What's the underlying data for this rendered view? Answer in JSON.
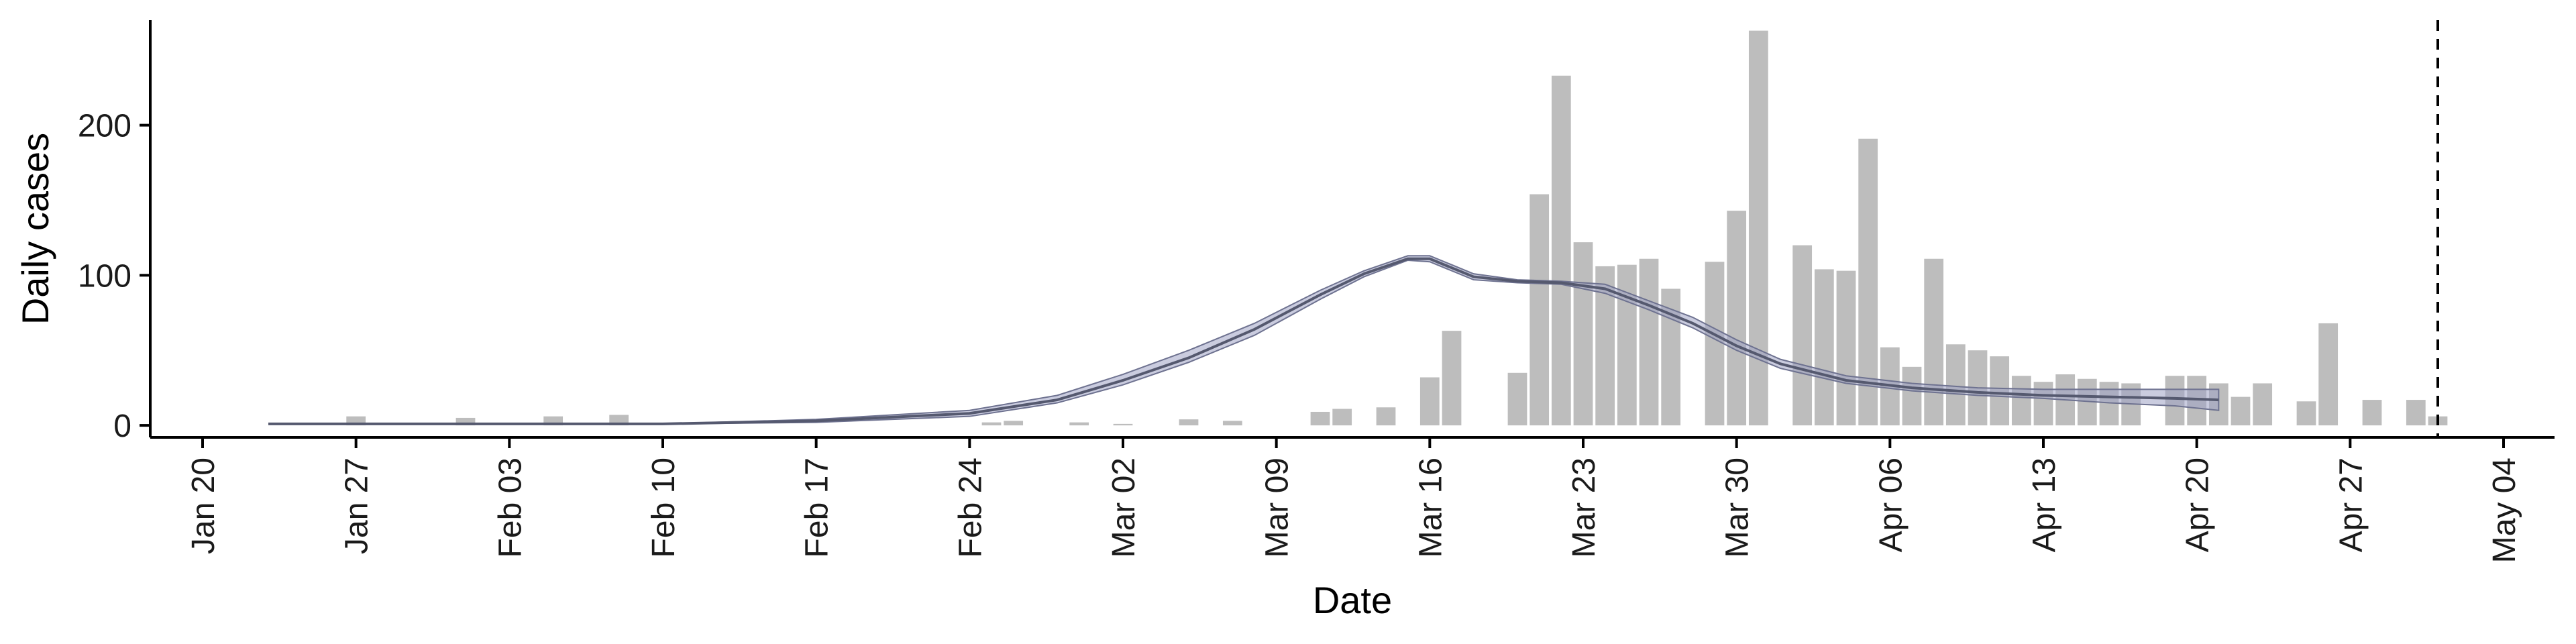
{
  "chart_data": {
    "type": "bar",
    "xlabel": "Date",
    "ylabel": "Daily cases",
    "x_axis": {
      "type": "date",
      "range": [
        "2020-01-20",
        "2020-05-04"
      ],
      "ticks": [
        "2020-01-20",
        "2020-01-27",
        "2020-02-03",
        "2020-02-10",
        "2020-02-17",
        "2020-02-24",
        "2020-03-02",
        "2020-03-09",
        "2020-03-16",
        "2020-03-23",
        "2020-03-30",
        "2020-04-06",
        "2020-04-13",
        "2020-04-20",
        "2020-04-27",
        "2020-05-04"
      ],
      "tick_labels": [
        "Jan 20",
        "Jan 27",
        "Feb 03",
        "Feb 10",
        "Feb 17",
        "Feb 24",
        "Mar 02",
        "Mar 09",
        "Mar 16",
        "Mar 23",
        "Mar 30",
        "Apr 06",
        "Apr 13",
        "Apr 20",
        "Apr 27",
        "May 04"
      ]
    },
    "y_axis": {
      "range": [
        -8,
        270
      ],
      "ticks": [
        0,
        100,
        200
      ],
      "tick_labels": [
        "0",
        "100",
        "200"
      ]
    },
    "grid": false,
    "legend": "none",
    "series": [
      {
        "type": "bar",
        "color": "#bdbdbd",
        "points": [
          [
            "2020-01-27",
            6
          ],
          [
            "2020-02-01",
            5
          ],
          [
            "2020-02-05",
            6
          ],
          [
            "2020-02-08",
            7
          ],
          [
            "2020-02-25",
            2
          ],
          [
            "2020-02-26",
            3
          ],
          [
            "2020-02-29",
            2
          ],
          [
            "2020-03-02",
            1
          ],
          [
            "2020-03-05",
            4
          ],
          [
            "2020-03-07",
            3
          ],
          [
            "2020-03-11",
            9
          ],
          [
            "2020-03-12",
            11
          ],
          [
            "2020-03-14",
            12
          ],
          [
            "2020-03-16",
            32
          ],
          [
            "2020-03-17",
            63
          ],
          [
            "2020-03-20",
            35
          ],
          [
            "2020-03-21",
            154
          ],
          [
            "2020-03-22",
            233
          ],
          [
            "2020-03-23",
            122
          ],
          [
            "2020-03-24",
            106
          ],
          [
            "2020-03-25",
            107
          ],
          [
            "2020-03-26",
            111
          ],
          [
            "2020-03-27",
            91
          ],
          [
            "2020-03-29",
            109
          ],
          [
            "2020-03-30",
            143
          ],
          [
            "2020-03-31",
            263
          ],
          [
            "2020-04-02",
            120
          ],
          [
            "2020-04-03",
            104
          ],
          [
            "2020-04-04",
            103
          ],
          [
            "2020-04-05",
            191
          ],
          [
            "2020-04-06",
            52
          ],
          [
            "2020-04-07",
            39
          ],
          [
            "2020-04-08",
            111
          ],
          [
            "2020-04-09",
            54
          ],
          [
            "2020-04-10",
            50
          ],
          [
            "2020-04-11",
            46
          ],
          [
            "2020-04-12",
            33
          ],
          [
            "2020-04-13",
            29
          ],
          [
            "2020-04-14",
            34
          ],
          [
            "2020-04-15",
            31
          ],
          [
            "2020-04-16",
            29
          ],
          [
            "2020-04-17",
            28
          ],
          [
            "2020-04-19",
            33
          ],
          [
            "2020-04-20",
            33
          ],
          [
            "2020-04-21",
            28
          ],
          [
            "2020-04-22",
            19
          ],
          [
            "2020-04-23",
            28
          ],
          [
            "2020-04-25",
            16
          ],
          [
            "2020-04-26",
            68
          ],
          [
            "2020-04-28",
            17
          ],
          [
            "2020-04-30",
            17
          ],
          [
            "2020-05-01",
            6
          ]
        ]
      },
      {
        "type": "line",
        "color": "#55596f",
        "ribbon_color": "#9ea3c4",
        "points": [
          [
            "2020-01-23",
            1,
            1,
            1
          ],
          [
            "2020-01-30",
            1,
            1,
            1
          ],
          [
            "2020-02-06",
            1,
            1,
            1
          ],
          [
            "2020-02-10",
            1,
            1,
            1
          ],
          [
            "2020-02-17",
            3,
            2,
            4
          ],
          [
            "2020-02-24",
            8,
            6,
            10
          ],
          [
            "2020-02-28",
            17,
            15,
            20
          ],
          [
            "2020-03-02",
            30,
            27,
            34
          ],
          [
            "2020-03-05",
            45,
            42,
            50
          ],
          [
            "2020-03-08",
            64,
            60,
            68
          ],
          [
            "2020-03-11",
            87,
            84,
            90
          ],
          [
            "2020-03-13",
            101,
            99,
            103
          ],
          [
            "2020-03-15",
            111,
            110,
            113
          ],
          [
            "2020-03-16",
            111,
            109,
            113
          ],
          [
            "2020-03-18",
            99,
            97,
            101
          ],
          [
            "2020-03-20",
            96,
            95,
            97
          ],
          [
            "2020-03-22",
            95,
            94,
            96
          ],
          [
            "2020-03-24",
            91,
            88,
            94
          ],
          [
            "2020-03-26",
            80,
            77,
            83
          ],
          [
            "2020-03-28",
            68,
            65,
            72
          ],
          [
            "2020-03-30",
            53,
            50,
            57
          ],
          [
            "2020-04-01",
            41,
            38,
            44
          ],
          [
            "2020-04-04",
            30,
            28,
            33
          ],
          [
            "2020-04-07",
            25,
            23,
            28
          ],
          [
            "2020-04-10",
            22,
            20,
            25
          ],
          [
            "2020-04-13",
            20,
            18,
            24
          ],
          [
            "2020-04-16",
            19,
            15,
            24
          ],
          [
            "2020-04-19",
            18,
            13,
            24
          ],
          [
            "2020-04-21",
            17,
            10,
            24
          ]
        ]
      }
    ],
    "reference_line": {
      "x": "2020-05-01",
      "style": "dashed",
      "color": "#000000"
    }
  }
}
